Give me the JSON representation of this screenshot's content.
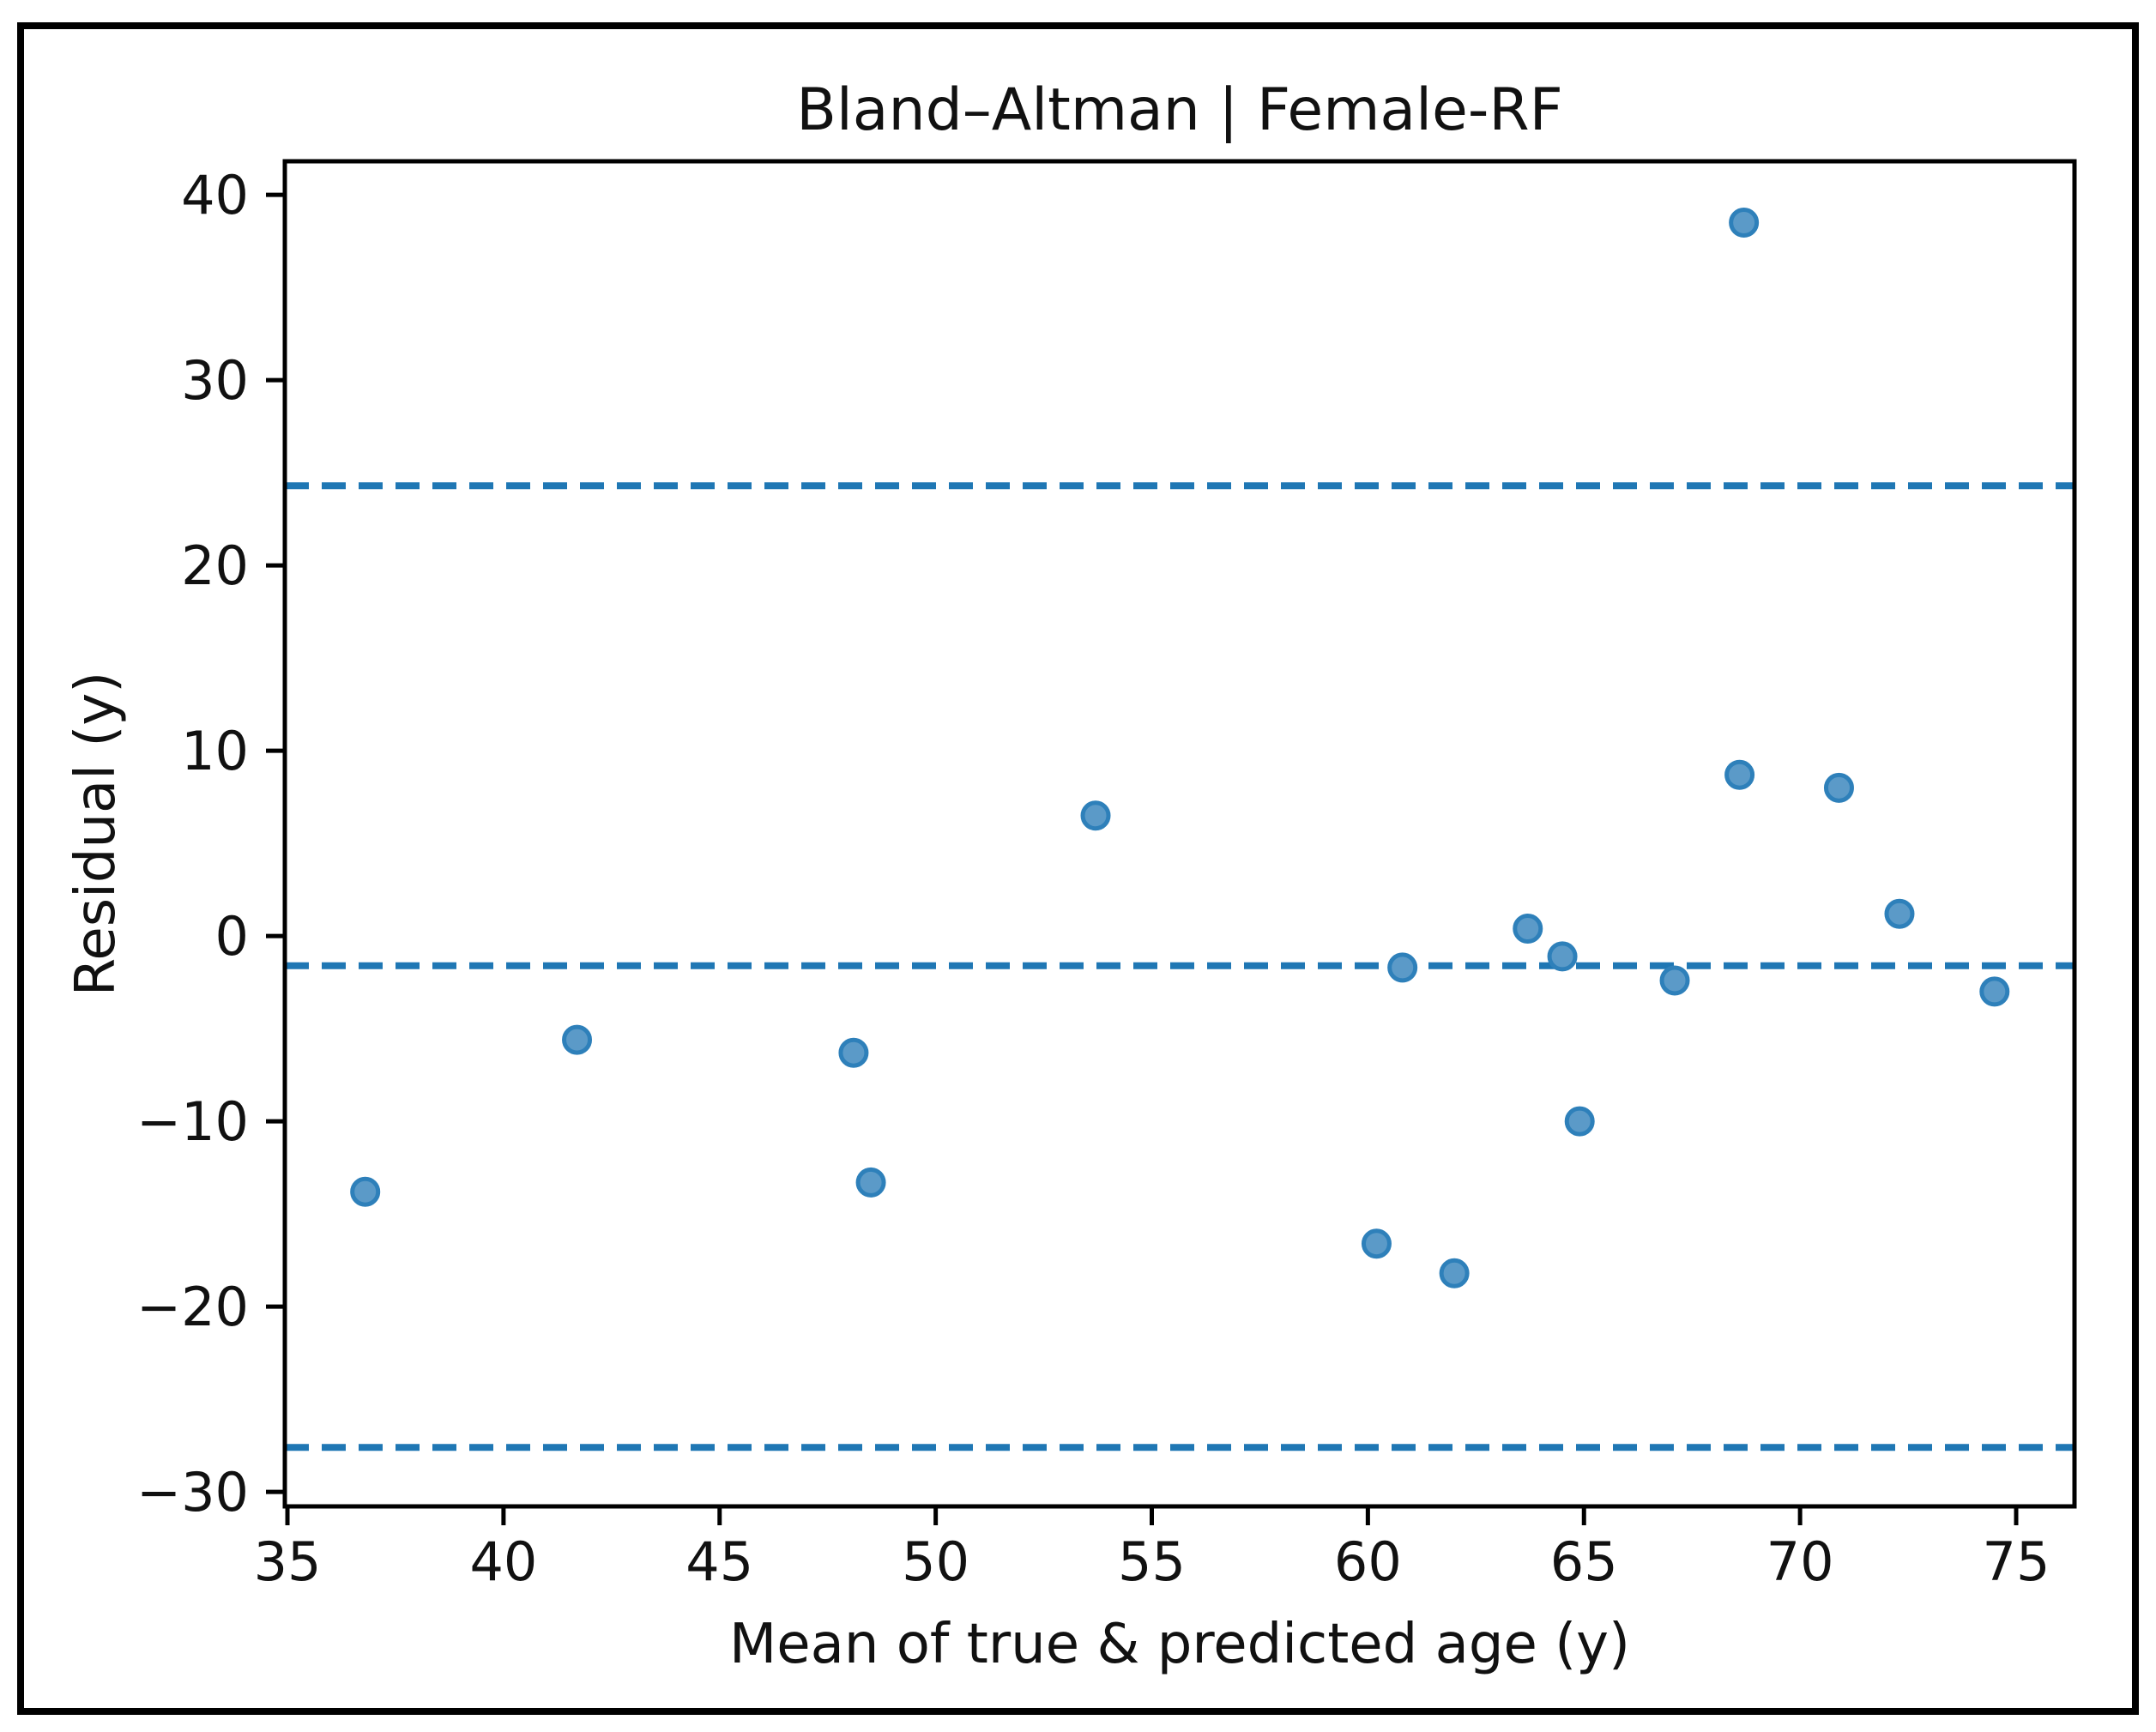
{
  "figure": {
    "title": "Bland–Altman | Female-RF",
    "xlabel": "Mean of true & predicted age (y)",
    "ylabel": "Residual (y)"
  },
  "chart_data": {
    "type": "scatter",
    "title": "Bland–Altman | Female-RF",
    "xlabel": "Mean of true & predicted age (y)",
    "ylabel": "Residual (y)",
    "xlim": [
      34.94,
      76.35
    ],
    "ylim": [
      -30.78,
      41.81
    ],
    "x_ticks": [
      35,
      40,
      45,
      50,
      55,
      60,
      65,
      70,
      75
    ],
    "x_tick_labels": [
      "35",
      "40",
      "45",
      "50",
      "55",
      "60",
      "65",
      "70",
      "75"
    ],
    "y_ticks": [
      40,
      30,
      20,
      10,
      0,
      -10,
      -20,
      -30
    ],
    "y_tick_labels": [
      "40",
      "30",
      "20",
      "10",
      "0",
      "−10",
      "−20",
      "−30"
    ],
    "grid": false,
    "legend": null,
    "series": [
      {
        "name": "residuals",
        "points": [
          [
            36.8,
            -13.8
          ],
          [
            41.7,
            -5.6
          ],
          [
            48.1,
            -6.3
          ],
          [
            48.5,
            -13.3
          ],
          [
            53.7,
            6.5
          ],
          [
            60.2,
            -16.6
          ],
          [
            60.8,
            -1.7
          ],
          [
            62.0,
            -18.2
          ],
          [
            63.7,
            0.4
          ],
          [
            64.5,
            -1.1
          ],
          [
            64.9,
            -10.0
          ],
          [
            67.1,
            -2.4
          ],
          [
            68.6,
            8.7
          ],
          [
            68.7,
            38.5
          ],
          [
            70.9,
            8.0
          ],
          [
            72.3,
            1.2
          ],
          [
            74.5,
            -3.0
          ]
        ]
      }
    ],
    "reference_lines": [
      {
        "name": "upper_limit_of_agreement",
        "value": 24.3,
        "style": "dashed"
      },
      {
        "name": "mean_bias",
        "value": -1.6,
        "style": "dashed"
      },
      {
        "name": "lower_limit_of_agreement",
        "value": -27.6,
        "style": "dashed"
      }
    ],
    "colors": {
      "reference_line": "#1f77b4",
      "marker_fill": "#5b9ac8",
      "marker_edge": "#2e80ba",
      "axis": "#000000",
      "text": "#111111"
    }
  }
}
